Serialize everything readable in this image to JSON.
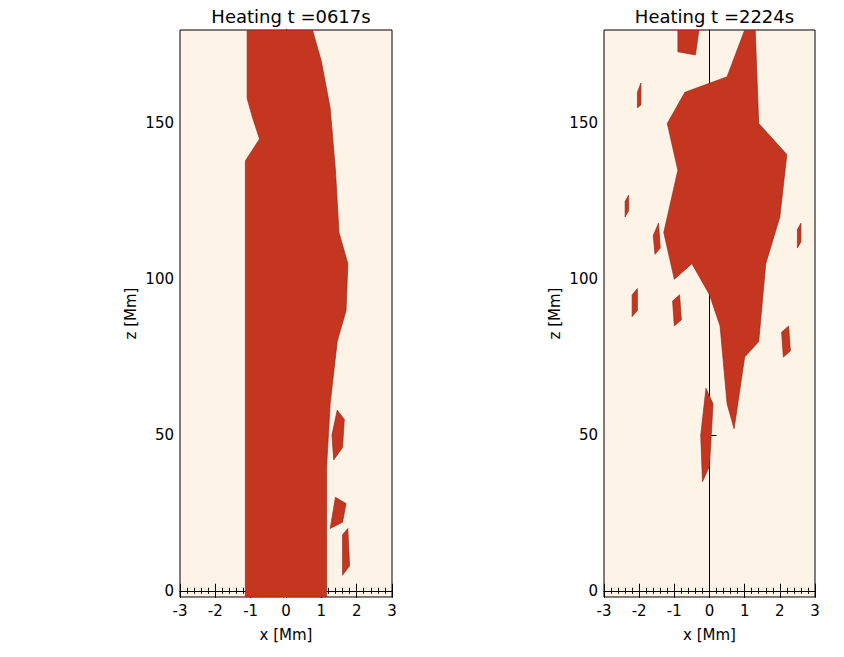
{
  "chart_data": [
    {
      "type": "polygon",
      "title": "Heating t =0617s",
      "xlabel": "x [Mm]",
      "ylabel": "z [Mm]",
      "xlim": [
        -3,
        3
      ],
      "xticks": [
        -3,
        -2,
        -1,
        0,
        1,
        2,
        3
      ],
      "ylim": [
        -2,
        180
      ],
      "yticks": [
        0,
        50,
        100,
        150
      ],
      "color": "#c4361f",
      "regions": [
        [
          [
            -1.15,
            -2
          ],
          [
            1.15,
            -2
          ],
          [
            1.15,
            40
          ],
          [
            1.25,
            60
          ],
          [
            1.45,
            80
          ],
          [
            1.7,
            90
          ],
          [
            1.75,
            105
          ],
          [
            1.5,
            115
          ],
          [
            1.4,
            135
          ],
          [
            1.25,
            155
          ],
          [
            1.0,
            170
          ],
          [
            0.75,
            180
          ],
          [
            -1.1,
            180
          ],
          [
            -1.1,
            158
          ],
          [
            -0.95,
            152
          ],
          [
            -0.75,
            145
          ],
          [
            -1.15,
            138
          ]
        ],
        [
          [
            1.35,
            42
          ],
          [
            1.6,
            46
          ],
          [
            1.65,
            55
          ],
          [
            1.45,
            58
          ],
          [
            1.3,
            50
          ]
        ],
        [
          [
            1.25,
            20
          ],
          [
            1.6,
            22
          ],
          [
            1.7,
            28
          ],
          [
            1.4,
            30
          ]
        ],
        [
          [
            1.6,
            5
          ],
          [
            1.8,
            8
          ],
          [
            1.75,
            20
          ],
          [
            1.6,
            18
          ]
        ]
      ]
    },
    {
      "type": "polygon",
      "title": "Heating t =2224s",
      "xlabel": "x [Mm]",
      "ylabel": "z [Mm]",
      "xlim": [
        -3,
        3
      ],
      "xticks": [
        -3,
        -2,
        -1,
        0,
        1,
        2,
        3
      ],
      "ylim": [
        -2,
        180
      ],
      "yticks": [
        0,
        50,
        100,
        150
      ],
      "color": "#c4361f",
      "regions": [
        [
          [
            -0.7,
            160
          ],
          [
            0.5,
            165
          ],
          [
            1.0,
            180
          ],
          [
            1.3,
            180
          ],
          [
            1.4,
            150
          ],
          [
            2.2,
            140
          ],
          [
            2.0,
            120
          ],
          [
            1.6,
            105
          ],
          [
            1.4,
            80
          ],
          [
            1.0,
            75
          ],
          [
            0.7,
            52
          ],
          [
            0.5,
            60
          ],
          [
            0.3,
            85
          ],
          [
            0.0,
            95
          ],
          [
            -0.5,
            105
          ],
          [
            -1.0,
            100
          ],
          [
            -1.3,
            115
          ],
          [
            -0.9,
            135
          ],
          [
            -1.2,
            150
          ]
        ],
        [
          [
            -0.9,
            173
          ],
          [
            -0.4,
            172
          ],
          [
            -0.3,
            180
          ],
          [
            -0.9,
            180
          ]
        ],
        [
          [
            -0.2,
            35
          ],
          [
            0.0,
            40
          ],
          [
            0.1,
            60
          ],
          [
            -0.1,
            65
          ],
          [
            -0.25,
            50
          ]
        ],
        [
          [
            -2.05,
            155
          ],
          [
            -1.95,
            156
          ],
          [
            -1.95,
            163
          ],
          [
            -2.05,
            160
          ]
        ],
        [
          [
            -2.4,
            120
          ],
          [
            -2.3,
            122
          ],
          [
            -2.3,
            127
          ],
          [
            -2.4,
            125
          ]
        ],
        [
          [
            -2.2,
            88
          ],
          [
            -2.05,
            90
          ],
          [
            -2.05,
            97
          ],
          [
            -2.2,
            95
          ]
        ],
        [
          [
            2.5,
            110
          ],
          [
            2.6,
            112
          ],
          [
            2.6,
            118
          ],
          [
            2.5,
            116
          ]
        ],
        [
          [
            -1.55,
            108
          ],
          [
            -1.4,
            110
          ],
          [
            -1.45,
            118
          ],
          [
            -1.6,
            114
          ]
        ],
        [
          [
            2.1,
            75
          ],
          [
            2.3,
            77
          ],
          [
            2.25,
            85
          ],
          [
            2.05,
            83
          ]
        ],
        [
          [
            -1.0,
            85
          ],
          [
            -0.8,
            87
          ],
          [
            -0.85,
            95
          ],
          [
            -1.05,
            93
          ]
        ]
      ]
    }
  ]
}
